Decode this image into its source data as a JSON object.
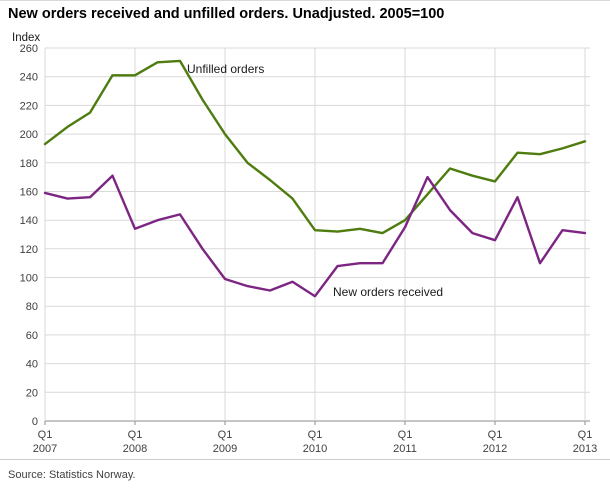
{
  "title": "New orders received and unfilled orders. Unadjusted. 2005=100",
  "source": "Source: Statistics Norway.",
  "chart_data": {
    "type": "line",
    "title": "New orders received and unfilled orders. Unadjusted. 2005=100",
    "xlabel": "",
    "ylabel": "Index",
    "ylim": [
      0,
      260
    ],
    "ytick_step": 20,
    "grid": true,
    "legend_position": "inline-annotations",
    "categories": [
      "Q1 2007",
      "Q2 2007",
      "Q3 2007",
      "Q4 2007",
      "Q1 2008",
      "Q2 2008",
      "Q3 2008",
      "Q4 2008",
      "Q1 2009",
      "Q2 2009",
      "Q3 2009",
      "Q4 2009",
      "Q1 2010",
      "Q2 2010",
      "Q3 2010",
      "Q4 2010",
      "Q1 2011",
      "Q2 2011",
      "Q3 2011",
      "Q4 2011",
      "Q1 2012",
      "Q2 2012",
      "Q3 2012",
      "Q4 2012",
      "Q1 2013"
    ],
    "x_ticks": [
      {
        "quarter": "Q1",
        "year": "2007"
      },
      {
        "quarter": "Q1",
        "year": "2008"
      },
      {
        "quarter": "Q1",
        "year": "2009"
      },
      {
        "quarter": "Q1",
        "year": "2010"
      },
      {
        "quarter": "Q1",
        "year": "2011"
      },
      {
        "quarter": "Q1",
        "year": "2012"
      },
      {
        "quarter": "Q1",
        "year": "2013"
      }
    ],
    "series": [
      {
        "name": "Unfilled orders",
        "color": "#4e7c0e",
        "values": [
          193,
          205,
          215,
          241,
          241,
          250,
          251,
          224,
          200,
          180,
          168,
          155,
          133,
          132,
          134,
          131,
          140,
          158,
          176,
          171,
          167,
          187,
          186,
          190,
          195
        ]
      },
      {
        "name": "New orders received",
        "color": "#7d2583",
        "values": [
          159,
          155,
          156,
          171,
          134,
          140,
          144,
          120,
          99,
          94,
          91,
          97,
          87,
          108,
          110,
          110,
          135,
          170,
          147,
          131,
          126,
          156,
          110,
          133,
          131
        ]
      }
    ],
    "colors": {
      "grid": "#d9d9d9",
      "axis": "#8c8c8c",
      "tick_text": "#404040"
    }
  }
}
